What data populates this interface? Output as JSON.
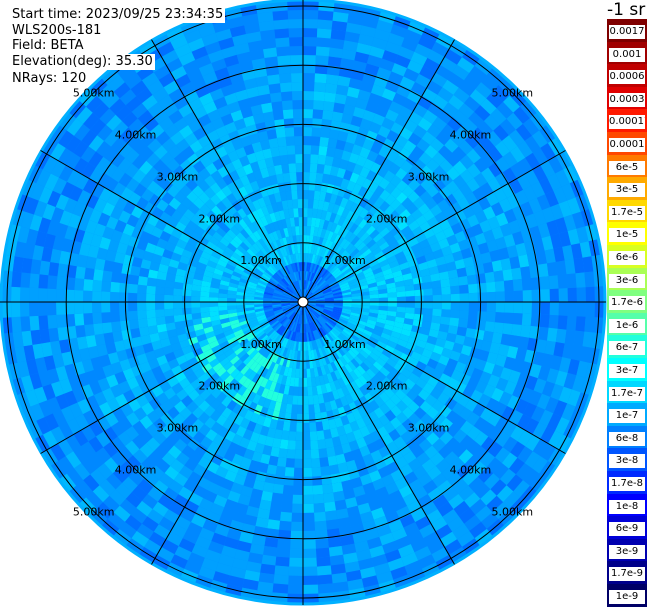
{
  "info": {
    "start_time": "Start time: 2023/09/25 23:34:35",
    "device": "WLS200s-181",
    "field": "Field: BETA",
    "elevation": "Elevation(deg): 35.30",
    "nrays": "NRays: 120"
  },
  "range_rings": {
    "ring_labels": [
      "1.00km",
      "2.00km",
      "3.00km",
      "4.00km",
      "5.00km"
    ]
  },
  "colorbar": {
    "unit_label": "-1 sr",
    "ticks": [
      {
        "label": "0.0017",
        "color": "#7f0000"
      },
      {
        "label": "0.001",
        "color": "#a00000"
      },
      {
        "label": "0.0006",
        "color": "#c00000"
      },
      {
        "label": "0.0003",
        "color": "#e00000"
      },
      {
        "label": "0.00017",
        "color": "#ff1a00"
      },
      {
        "label": "0.0001",
        "color": "#ff4800"
      },
      {
        "label": "6e-5",
        "color": "#ff7a00"
      },
      {
        "label": "3e-5",
        "color": "#ffaa00"
      },
      {
        "label": "1.7e-5",
        "color": "#ffd800"
      },
      {
        "label": "1e-5",
        "color": "#ffff00"
      },
      {
        "label": "6e-6",
        "color": "#d8ff22"
      },
      {
        "label": "3e-6",
        "color": "#aaff55"
      },
      {
        "label": "1.7e-6",
        "color": "#7fff80"
      },
      {
        "label": "1e-6",
        "color": "#55ffaa"
      },
      {
        "label": "6e-7",
        "color": "#22ffdd"
      },
      {
        "label": "3e-7",
        "color": "#00ffff"
      },
      {
        "label": "1.7e-7",
        "color": "#00d8ff"
      },
      {
        "label": "1e-7",
        "color": "#00aaff"
      },
      {
        "label": "6e-8",
        "color": "#0080ff"
      },
      {
        "label": "3e-8",
        "color": "#0055ff"
      },
      {
        "label": "1.7e-8",
        "color": "#002aff"
      },
      {
        "label": "1e-8",
        "color": "#0000ff"
      },
      {
        "label": "6e-9",
        "color": "#0000d8"
      },
      {
        "label": "3e-9",
        "color": "#0000b0"
      },
      {
        "label": "1.7e-9",
        "color": "#00008a"
      },
      {
        "label": "1e-9",
        "color": "#000066"
      }
    ]
  }
}
